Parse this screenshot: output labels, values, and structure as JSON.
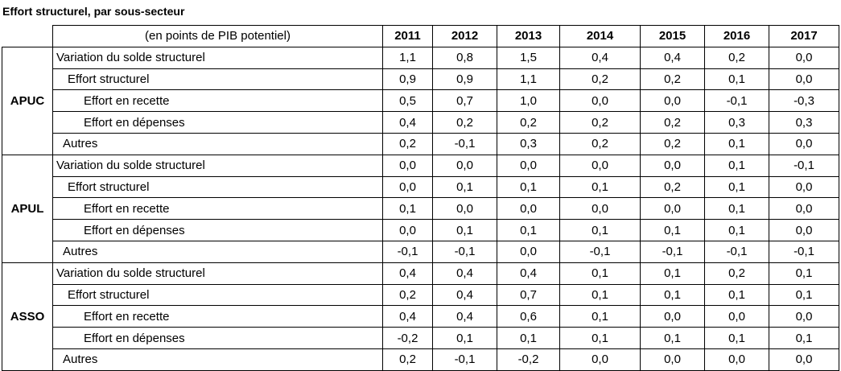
{
  "title": "Effort structurel, par sous-secteur",
  "table": {
    "header": {
      "unit": "(en points de PIB potentiel)",
      "years": [
        "2011",
        "2012",
        "2013",
        "2014",
        "2015",
        "2016",
        "2017"
      ]
    },
    "groups": [
      {
        "name": "APUC",
        "rows": [
          {
            "label": "Variation du solde structurel",
            "values": [
              "1,1",
              "0,8",
              "1,5",
              "0,4",
              "0,4",
              "0,2",
              "0,0"
            ]
          },
          {
            "label": "Effort structurel",
            "values": [
              "0,9",
              "0,9",
              "1,1",
              "0,2",
              "0,2",
              "0,1",
              "0,0"
            ]
          },
          {
            "label": "Effort en recette",
            "values": [
              "0,5",
              "0,7",
              "1,0",
              "0,0",
              "0,0",
              "-0,1",
              "-0,3"
            ]
          },
          {
            "label": "Effort en dépenses",
            "values": [
              "0,4",
              "0,2",
              "0,2",
              "0,2",
              "0,2",
              "0,3",
              "0,3"
            ]
          },
          {
            "label": "Autres",
            "values": [
              "0,2",
              "-0,1",
              "0,3",
              "0,2",
              "0,2",
              "0,1",
              "0,0"
            ]
          }
        ]
      },
      {
        "name": "APUL",
        "rows": [
          {
            "label": "Variation du solde structurel",
            "values": [
              "0,0",
              "0,0",
              "0,0",
              "0,0",
              "0,0",
              "0,1",
              "-0,1"
            ]
          },
          {
            "label": "Effort structurel",
            "values": [
              "0,0",
              "0,1",
              "0,1",
              "0,1",
              "0,2",
              "0,1",
              "0,0"
            ]
          },
          {
            "label": "Effort en recette",
            "values": [
              "0,1",
              "0,0",
              "0,0",
              "0,0",
              "0,0",
              "0,1",
              "0,0"
            ]
          },
          {
            "label": "Effort en dépenses",
            "values": [
              "0,0",
              "0,1",
              "0,1",
              "0,1",
              "0,1",
              "0,1",
              "0,0"
            ]
          },
          {
            "label": "Autres",
            "values": [
              "-0,1",
              "-0,1",
              "0,0",
              "-0,1",
              "-0,1",
              "-0,1",
              "-0,1"
            ]
          }
        ]
      },
      {
        "name": "ASSO",
        "rows": [
          {
            "label": "Variation du solde structurel",
            "values": [
              "0,4",
              "0,4",
              "0,4",
              "0,1",
              "0,1",
              "0,2",
              "0,1"
            ]
          },
          {
            "label": "Effort structurel",
            "values": [
              "0,2",
              "0,4",
              "0,7",
              "0,1",
              "0,1",
              "0,1",
              "0,1"
            ]
          },
          {
            "label": "Effort en recette",
            "values": [
              "0,4",
              "0,4",
              "0,6",
              "0,1",
              "0,0",
              "0,0",
              "0,0"
            ]
          },
          {
            "label": "Effort en dépenses",
            "values": [
              "-0,2",
              "0,1",
              "0,1",
              "0,1",
              "0,1",
              "0,1",
              "0,1"
            ]
          },
          {
            "label": "Autres",
            "values": [
              "0,2",
              "-0,1",
              "-0,2",
              "0,0",
              "0,0",
              "0,0",
              "0,0"
            ]
          }
        ]
      }
    ]
  }
}
